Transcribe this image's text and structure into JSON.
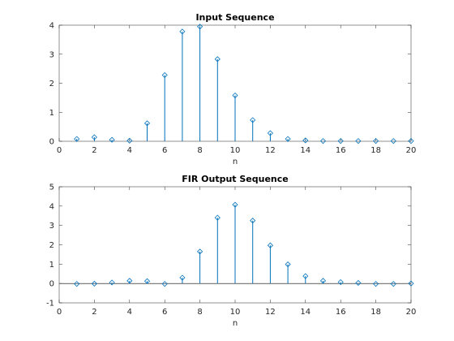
{
  "colors": {
    "stem": "#0072bd",
    "axis": "#262626",
    "baseline": "#000000"
  },
  "chart_data": [
    {
      "type": "stem",
      "title": "Input Sequence",
      "xlabel": "n",
      "ylabel": "",
      "xlim": [
        0,
        20
      ],
      "ylim": [
        0,
        4
      ],
      "xticks": [
        "0",
        "2",
        "4",
        "6",
        "8",
        "10",
        "12",
        "14",
        "16",
        "18",
        "20"
      ],
      "yticks": [
        "0",
        "1",
        "2",
        "3",
        "4"
      ],
      "grid": false,
      "marker": "diamond",
      "x": [
        1,
        2,
        3,
        4,
        5,
        6,
        7,
        8,
        9,
        10,
        11,
        12,
        13,
        14,
        15,
        16,
        17,
        18,
        19,
        20
      ],
      "y": [
        0.08,
        0.14,
        0.05,
        0.02,
        0.62,
        2.28,
        3.78,
        3.95,
        2.83,
        1.58,
        0.73,
        0.28,
        0.08,
        0.03,
        0.01,
        0.01,
        0.01,
        0.01,
        0.01,
        0.01
      ]
    },
    {
      "type": "stem",
      "title": "FIR Output Sequence",
      "xlabel": "n",
      "ylabel": "",
      "xlim": [
        0,
        20
      ],
      "ylim": [
        -1,
        5
      ],
      "xticks": [
        "0",
        "2",
        "4",
        "6",
        "8",
        "10",
        "12",
        "14",
        "16",
        "18",
        "20"
      ],
      "yticks": [
        "-1",
        "0",
        "1",
        "2",
        "3",
        "4",
        "5"
      ],
      "grid": false,
      "marker": "diamond",
      "x": [
        1,
        2,
        3,
        4,
        5,
        6,
        7,
        8,
        9,
        10,
        11,
        12,
        13,
        14,
        15,
        16,
        17,
        18,
        19,
        20
      ],
      "y": [
        -0.02,
        -0.01,
        0.05,
        0.14,
        0.12,
        -0.02,
        0.3,
        1.65,
        3.4,
        4.07,
        3.25,
        1.97,
        0.99,
        0.38,
        0.14,
        0.07,
        0.03,
        -0.02,
        -0.02,
        0.0
      ]
    }
  ]
}
